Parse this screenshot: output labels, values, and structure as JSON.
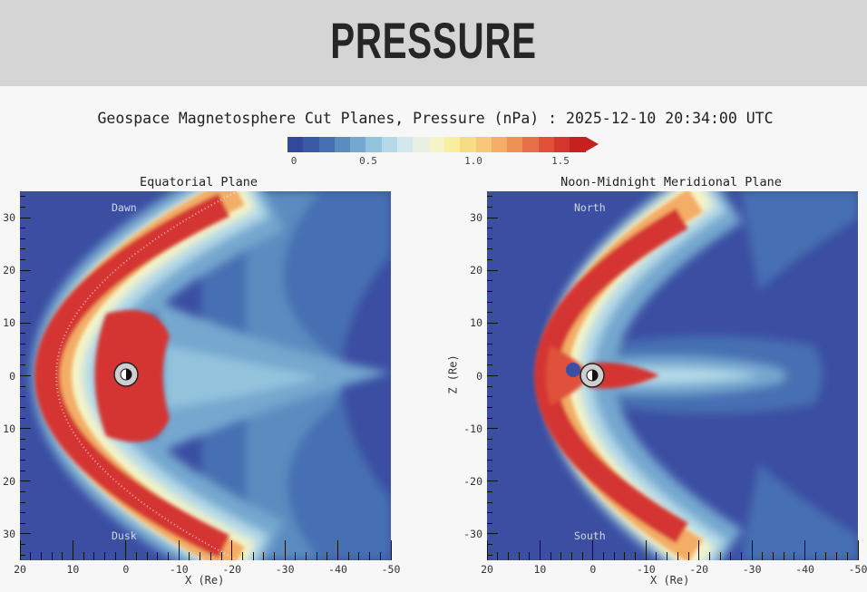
{
  "header": {
    "title": "PRESSURE"
  },
  "chart_data": {
    "type": "heatmap",
    "title": "Geospace Magnetosphere Cut Planes, Pressure (nPa) : 2025-12-10 20:34:00 UTC",
    "colorbar": {
      "unit": "nPa",
      "range": [
        0,
        1.6
      ],
      "tick_labels": [
        "0",
        "0.5",
        "1.0",
        "1.5"
      ],
      "tick_values": [
        0,
        0.5,
        1.0,
        1.5
      ],
      "extend": "max",
      "colors": [
        "#34479b",
        "#3b5aa6",
        "#4670b2",
        "#5a8cc0",
        "#74a7cf",
        "#93c2dd",
        "#b3d9e8",
        "#d1e8ef",
        "#e8f0e4",
        "#f5f4c6",
        "#f8ef9e",
        "#f7dc86",
        "#f6c679",
        "#f3ad66",
        "#ee9154",
        "#e87046",
        "#e0513a",
        "#d43630",
        "#c8201f"
      ]
    },
    "panels": [
      {
        "title": "Equatorial Plane",
        "xlabel": "X (Re)",
        "ylabel": "",
        "xlim": [
          20,
          -50
        ],
        "ylim": [
          -35,
          35
        ],
        "x_tick_labels": [
          "20",
          "10",
          "0",
          "-10",
          "-20",
          "-30",
          "-40",
          "-50"
        ],
        "y_tick_labels": [
          "30",
          "20",
          "10",
          "0",
          "10",
          "20",
          "30"
        ],
        "top_label": "Dawn",
        "bottom_label": "Dusk"
      },
      {
        "title": "Noon-Midnight Meridional Plane",
        "xlabel": "X (Re)",
        "ylabel": "Z (Re)",
        "xlim": [
          20,
          -50
        ],
        "ylim": [
          -35,
          35
        ],
        "x_tick_labels": [
          "20",
          "10",
          "0",
          "-10",
          "-20",
          "-30",
          "-40",
          "-50"
        ],
        "y_tick_labels": [
          "30",
          "20",
          "10",
          "0",
          "-10",
          "-20",
          "-30"
        ],
        "top_label": "North",
        "bottom_label": "South"
      }
    ]
  }
}
